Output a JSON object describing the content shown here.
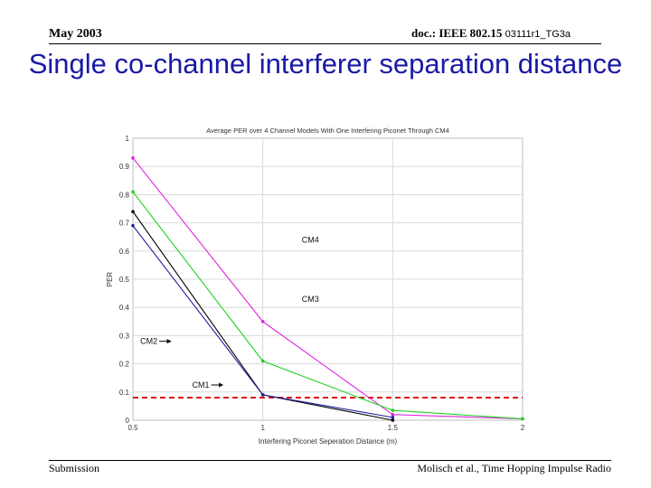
{
  "header": {
    "date": "May 2003",
    "doc_prefix": "doc.: IEEE 802.15",
    "doc_id": "03111r1_TG3a"
  },
  "slide": {
    "title": "Single co-channel interferer separation distance"
  },
  "footer": {
    "left": "Submission",
    "right": "Molisch et al., Time  Hopping Impulse Radio"
  },
  "chart_data": {
    "type": "line",
    "title": "Average PER over 4 Channel Models With One Interfering Piconet Through CM4",
    "xlabel": "Interfering Piconet Seperation Distance (m)",
    "ylabel": "PER",
    "xlim": [
      0.5,
      2
    ],
    "ylim": [
      0,
      1
    ],
    "x_ticks": [
      0.5,
      1,
      1.5,
      2
    ],
    "x_tick_labels": [
      "0.5",
      "1",
      "1.5",
      "2"
    ],
    "y_ticks": [
      0,
      0.1,
      0.2,
      0.3,
      0.4,
      0.5,
      0.6,
      0.7,
      0.8,
      0.9,
      1
    ],
    "y_tick_labels": [
      "0",
      "0.1",
      "0.2",
      "0.3",
      "0.4",
      "0.5",
      "0.6",
      "0.7",
      "0.8",
      "0.9",
      "1"
    ],
    "grid": true,
    "series": [
      {
        "name": "CM4",
        "color": "#e020e0",
        "x": [
          0.5,
          1,
          1.5,
          2
        ],
        "y": [
          0.93,
          0.35,
          0.02,
          0.005
        ],
        "label_at": [
          1.15,
          0.64
        ],
        "arrow": false
      },
      {
        "name": "CM3",
        "color": "#20d020",
        "x": [
          0.5,
          1,
          1.5,
          2
        ],
        "y": [
          0.81,
          0.21,
          0.035,
          0.005
        ],
        "label_at": [
          1.15,
          0.43
        ],
        "arrow": false
      },
      {
        "name": "CM2",
        "color": "#000000",
        "x": [
          0.5,
          1,
          1.5
        ],
        "y": [
          0.74,
          0.09,
          0.0
        ],
        "label_at": [
          0.65,
          0.28
        ],
        "arrow": true,
        "arrow_to": [
          0.65,
          0.28
        ]
      },
      {
        "name": "CM1",
        "color": "#2020a0",
        "x": [
          0.5,
          1,
          1.5
        ],
        "y": [
          0.69,
          0.09,
          0.01
        ],
        "label_at": [
          0.85,
          0.125
        ],
        "arrow": true,
        "arrow_to": [
          0.85,
          0.12
        ]
      }
    ],
    "threshold": {
      "y": 0.08,
      "color": "#dd1111",
      "style": "dashed"
    }
  }
}
